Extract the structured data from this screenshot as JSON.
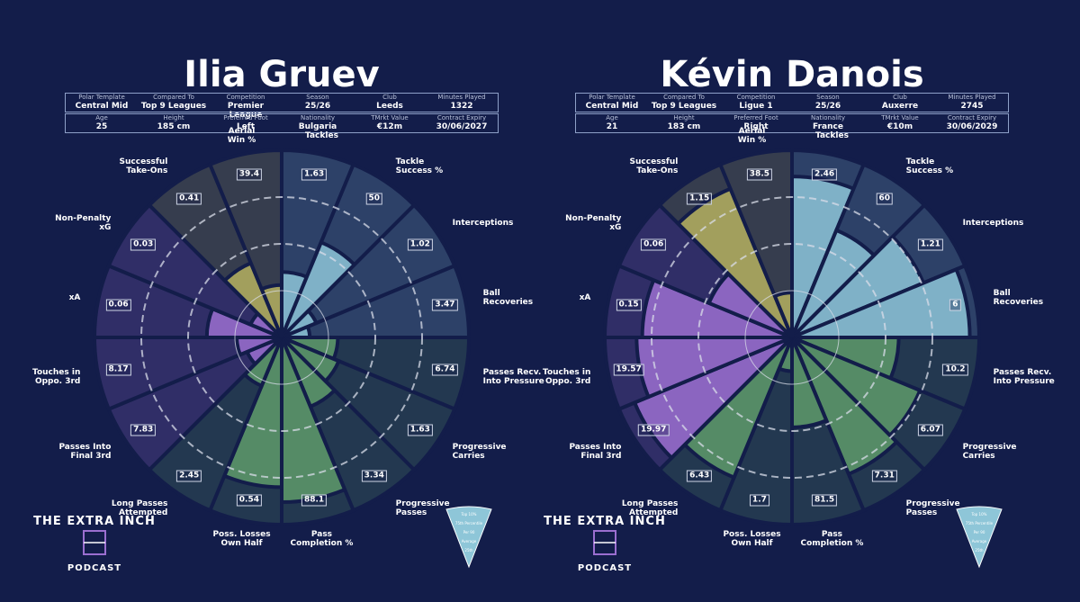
{
  "chart_data": [
    {
      "type": "polar",
      "title": "Ilia Gruev",
      "info": [
        [
          {
            "label": "Polar Template",
            "value": "Central Mid"
          },
          {
            "label": "Compared To",
            "value": "Top 9 Leagues"
          },
          {
            "label": "Competition",
            "value": "Premier League"
          },
          {
            "label": "Season",
            "value": "25/26"
          },
          {
            "label": "Club",
            "value": "Leeds"
          },
          {
            "label": "Minutes Played",
            "value": "1322"
          }
        ],
        [
          {
            "label": "Age",
            "value": "25"
          },
          {
            "label": "Height",
            "value": "185 cm"
          },
          {
            "label": "Preferred Foot",
            "value": "Left"
          },
          {
            "label": "Nationality",
            "value": "Bulgaria"
          },
          {
            "label": "TMrkt Value",
            "value": "€12m"
          },
          {
            "label": "Contract Expiry",
            "value": "30/06/2027"
          }
        ]
      ],
      "categories": [
        "Tackles",
        "Tackle\nSuccess %",
        "Interceptions",
        "Ball\nRecoveries",
        "Passes Recv.\nInto Pressure",
        "Progressive\nCarries",
        "Progressive\nPasses",
        "Pass\nCompletion %",
        "Poss. Losses\nOwn Half",
        "Long Passes\nAttempted",
        "Passes Into\nFinal 3rd",
        "Touches in\nOppo. 3rd",
        "xA",
        "Non-Penalty\nxG",
        "Successful\nTake-Ons",
        "Aerial\nWin %"
      ],
      "values": [
        35,
        55,
        20,
        15,
        30,
        33,
        40,
        88,
        80,
        28,
        20,
        24,
        40,
        18,
        43,
        28
      ],
      "stats": [
        1.63,
        50,
        1.02,
        3.47,
        6.74,
        1.63,
        3.34,
        88.1,
        0.54,
        2.45,
        7.83,
        8.17,
        0.06,
        0.03,
        0.41,
        39.4
      ],
      "colors": [
        "#8ec6d8",
        "#8ec6d8",
        "#8ec6d8",
        "#8ec6d8",
        "#5e9a6a",
        "#5e9a6a",
        "#5e9a6a",
        "#5e9a6a",
        "#5e9a6a",
        "#5e9a6a",
        "#9b6fd0",
        "#9b6fd0",
        "#9b6fd0",
        "#9b6fd0",
        "#b5b060",
        "#b5b060"
      ],
      "rlim": [
        0,
        100
      ],
      "rticks": [
        25,
        50,
        75
      ],
      "logo": [
        "THE EXTRA INCH",
        "PODCAST"
      ],
      "legend": [
        "Top 10%",
        "75th Percentile",
        "Per 90",
        "Average",
        "25th"
      ]
    },
    {
      "type": "polar",
      "title": "Kévin Danois",
      "info": [
        [
          {
            "label": "Polar Template",
            "value": "Central Mid"
          },
          {
            "label": "Compared To",
            "value": "Top 9 Leagues"
          },
          {
            "label": "Competition",
            "value": "Ligue 1"
          },
          {
            "label": "Season",
            "value": "25/26"
          },
          {
            "label": "Club",
            "value": "Auxerre"
          },
          {
            "label": "Minutes Played",
            "value": "2745"
          }
        ],
        [
          {
            "label": "Age",
            "value": "21"
          },
          {
            "label": "Height",
            "value": "183 cm"
          },
          {
            "label": "Preferred Foot",
            "value": "Right"
          },
          {
            "label": "Nationality",
            "value": "France"
          },
          {
            "label": "TMrkt Value",
            "value": "€10m"
          },
          {
            "label": "Contract Expiry",
            "value": "30/06/2029"
          }
        ]
      ],
      "categories": [
        "Tackles",
        "Tackle\nSuccess %",
        "Interceptions",
        "Ball\nRecoveries",
        "Passes Recv.\nInto Pressure",
        "Progressive\nCarries",
        "Progressive\nPasses",
        "Pass\nCompletion %",
        "Poss. Losses\nOwn Half",
        "Long Passes\nAttempted",
        "Passes Into\nFinal 3rd",
        "Touches in\nOppo. 3rd",
        "xA",
        "Non-Penalty\nxG",
        "Successful\nTake-Ons",
        "Aerial\nWin %"
      ],
      "values": [
        86,
        62,
        76,
        95,
        57,
        74,
        79,
        48,
        18,
        81,
        91,
        83,
        80,
        48,
        86,
        24
      ],
      "stats": [
        2.46,
        60,
        1.21,
        6,
        10.2,
        6.07,
        7.31,
        81.5,
        1.7,
        6.43,
        19.97,
        19.57,
        0.15,
        0.06,
        1.15,
        38.5
      ],
      "colors": [
        "#8ec6d8",
        "#8ec6d8",
        "#8ec6d8",
        "#8ec6d8",
        "#5e9a6a",
        "#5e9a6a",
        "#5e9a6a",
        "#5e9a6a",
        "#5e9a6a",
        "#5e9a6a",
        "#9b6fd0",
        "#9b6fd0",
        "#9b6fd0",
        "#9b6fd0",
        "#b5b060",
        "#b5b060"
      ],
      "rlim": [
        0,
        100
      ],
      "rticks": [
        25,
        50,
        75
      ],
      "logo": [
        "THE EXTRA INCH",
        "PODCAST"
      ],
      "legend": [
        "Top 10%",
        "75th Percentile",
        "Per 90",
        "Average",
        "25th"
      ]
    }
  ]
}
